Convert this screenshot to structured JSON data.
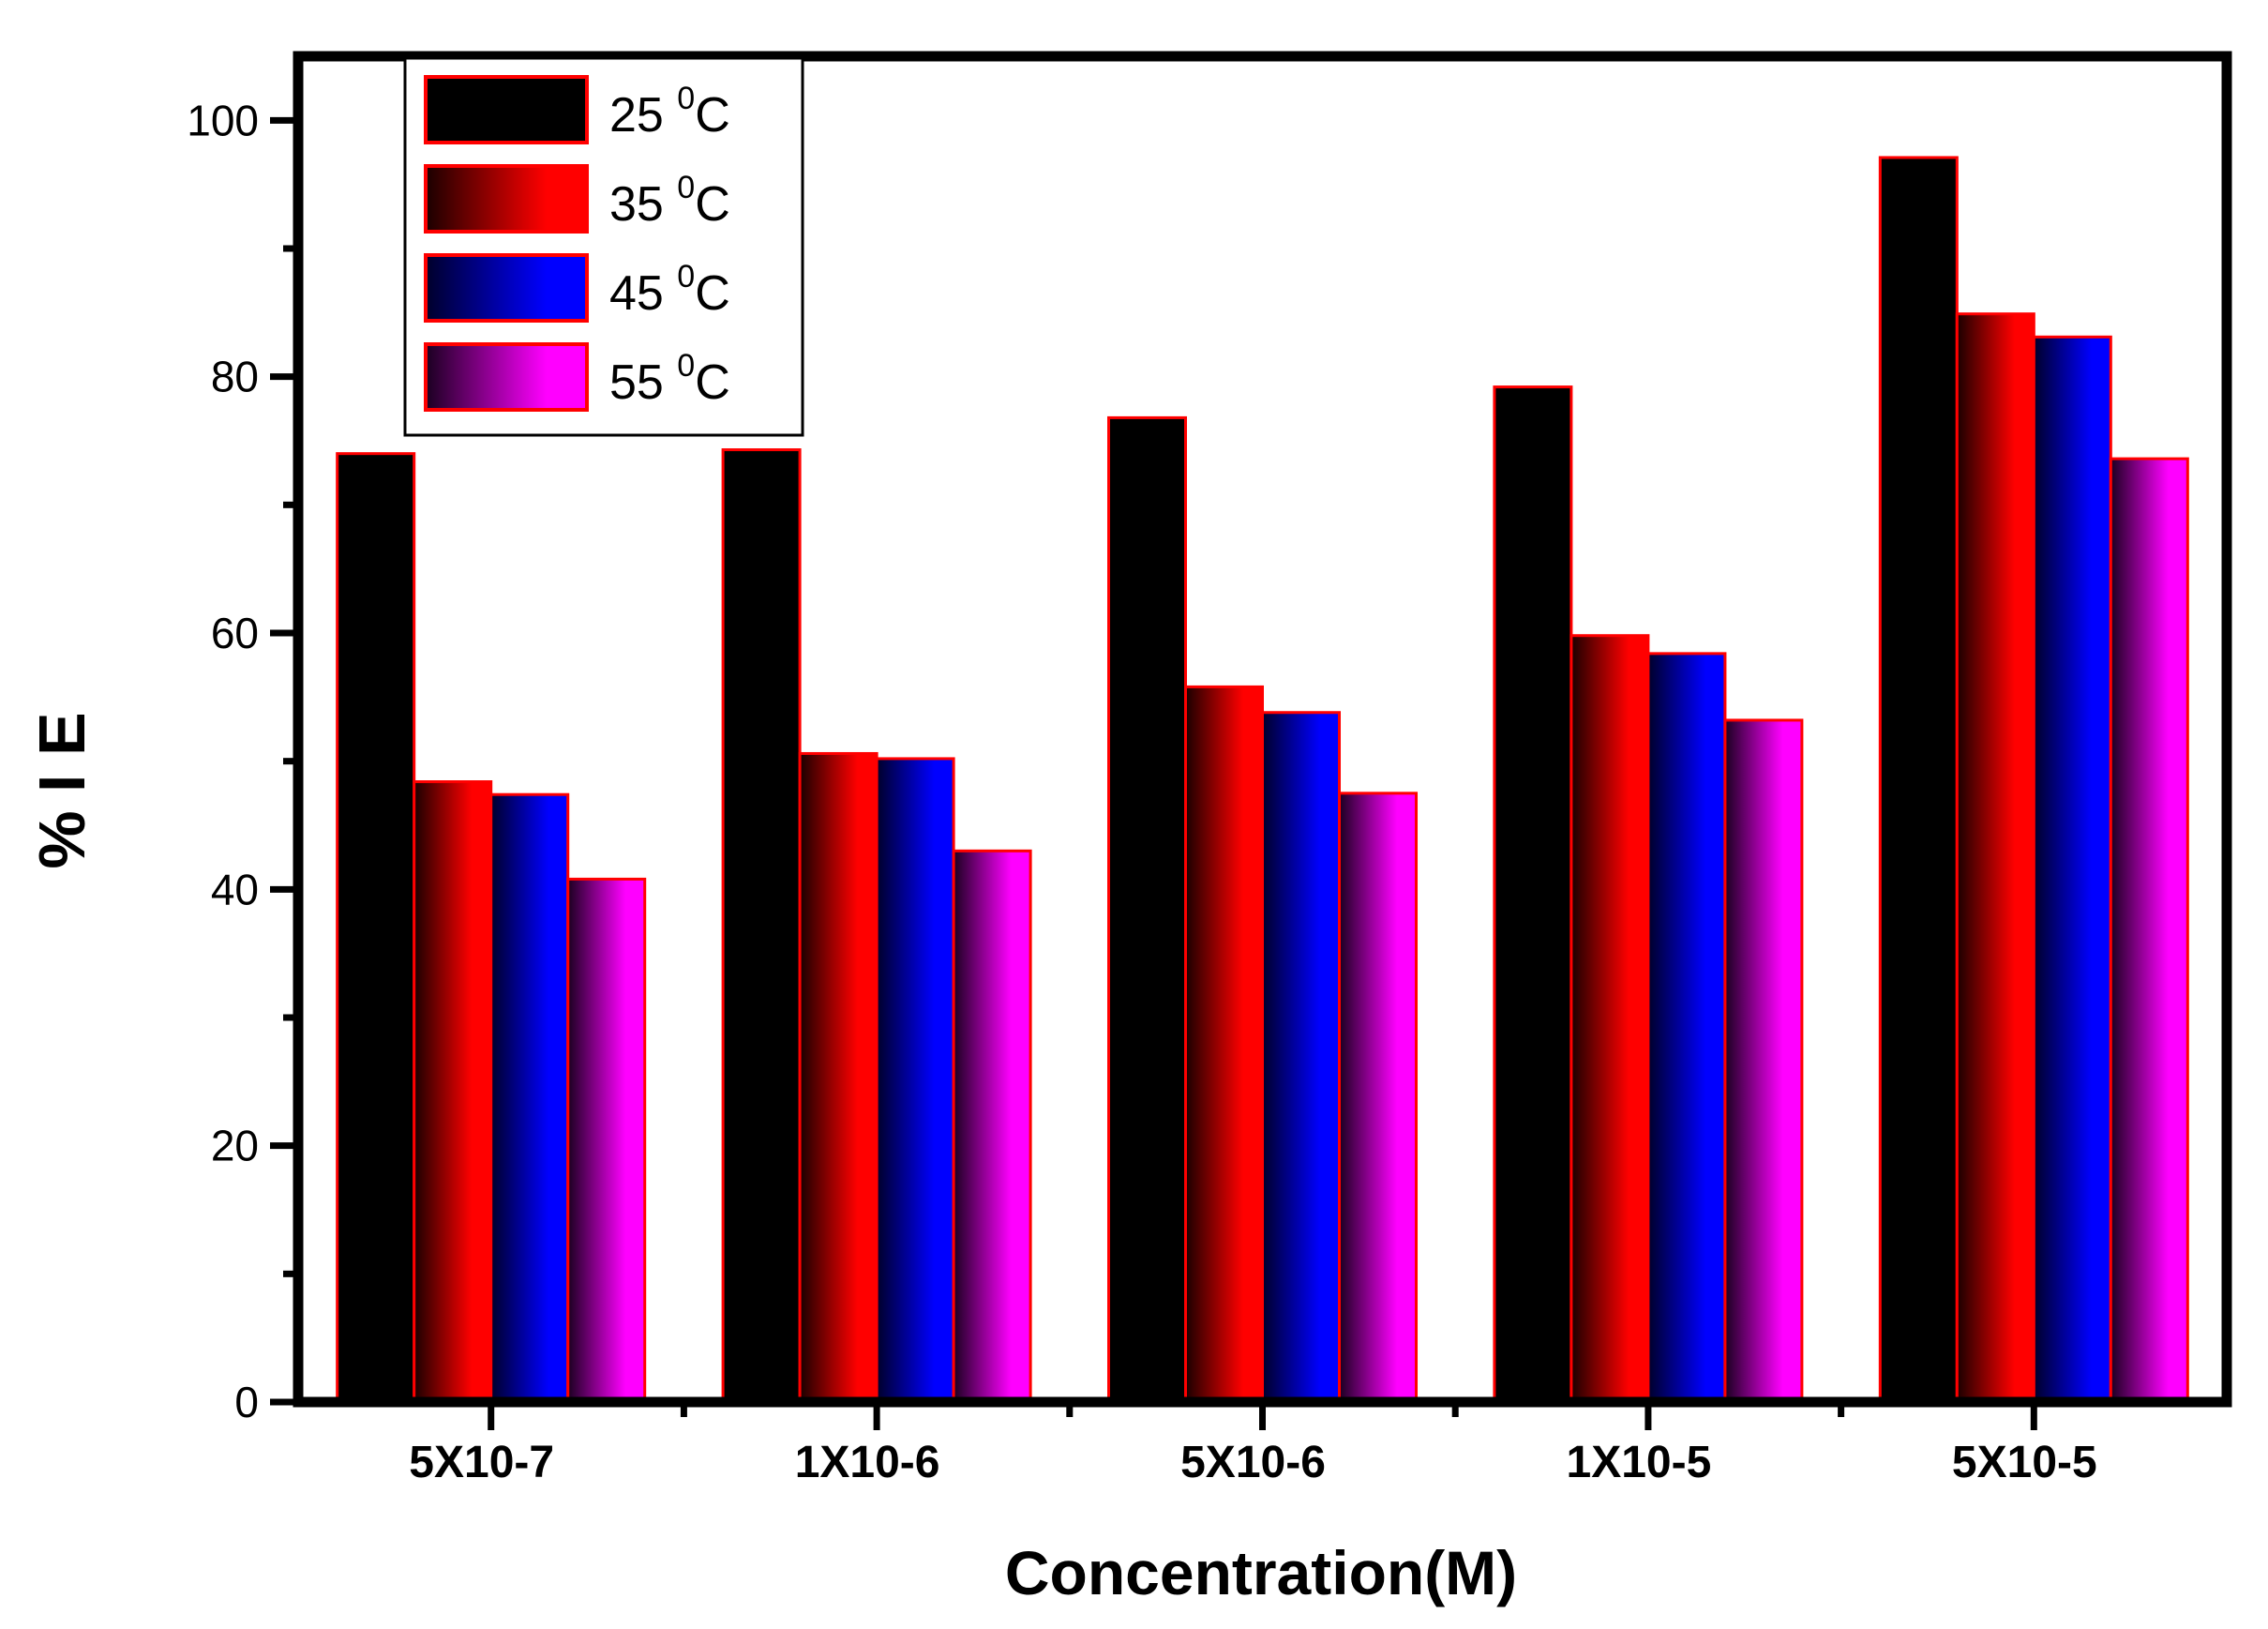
{
  "chart_data": {
    "type": "bar",
    "title": "",
    "xlabel": "Concentration(M)",
    "ylabel": "% I E",
    "ylim": [
      0,
      105
    ],
    "yticks": [
      0,
      20,
      40,
      60,
      80,
      100
    ],
    "y_minor_ticks": [
      10,
      30,
      50,
      70,
      90
    ],
    "categories": [
      "5X10-7",
      "1X10-6",
      "5X10-6",
      "1X10-5",
      "5X10-5"
    ],
    "series": [
      {
        "name": "25",
        "label_suffix": "C",
        "superscript": "0",
        "values": [
          74,
          74.3,
          76.8,
          79.2,
          97.1
        ],
        "color_start": "#000000",
        "color_end": "#000000"
      },
      {
        "name": "35",
        "label_suffix": "C",
        "superscript": "0",
        "values": [
          48.4,
          50.6,
          55.8,
          59.8,
          84.9
        ],
        "color_start": "#1a0000",
        "color_end": "#ff0000"
      },
      {
        "name": "45",
        "label_suffix": "C",
        "superscript": "0",
        "values": [
          47.4,
          50.2,
          53.8,
          58.4,
          83.1
        ],
        "color_start": "#00002a",
        "color_end": "#0000ff"
      },
      {
        "name": "55",
        "label_suffix": "C",
        "superscript": "0",
        "values": [
          40.8,
          43.0,
          47.5,
          53.2,
          73.6
        ],
        "color_start": "#1a0020",
        "color_end": "#ff00ff"
      }
    ],
    "bar_outline_color": "#ff0000",
    "grid": false,
    "legend_position": "top-left"
  }
}
